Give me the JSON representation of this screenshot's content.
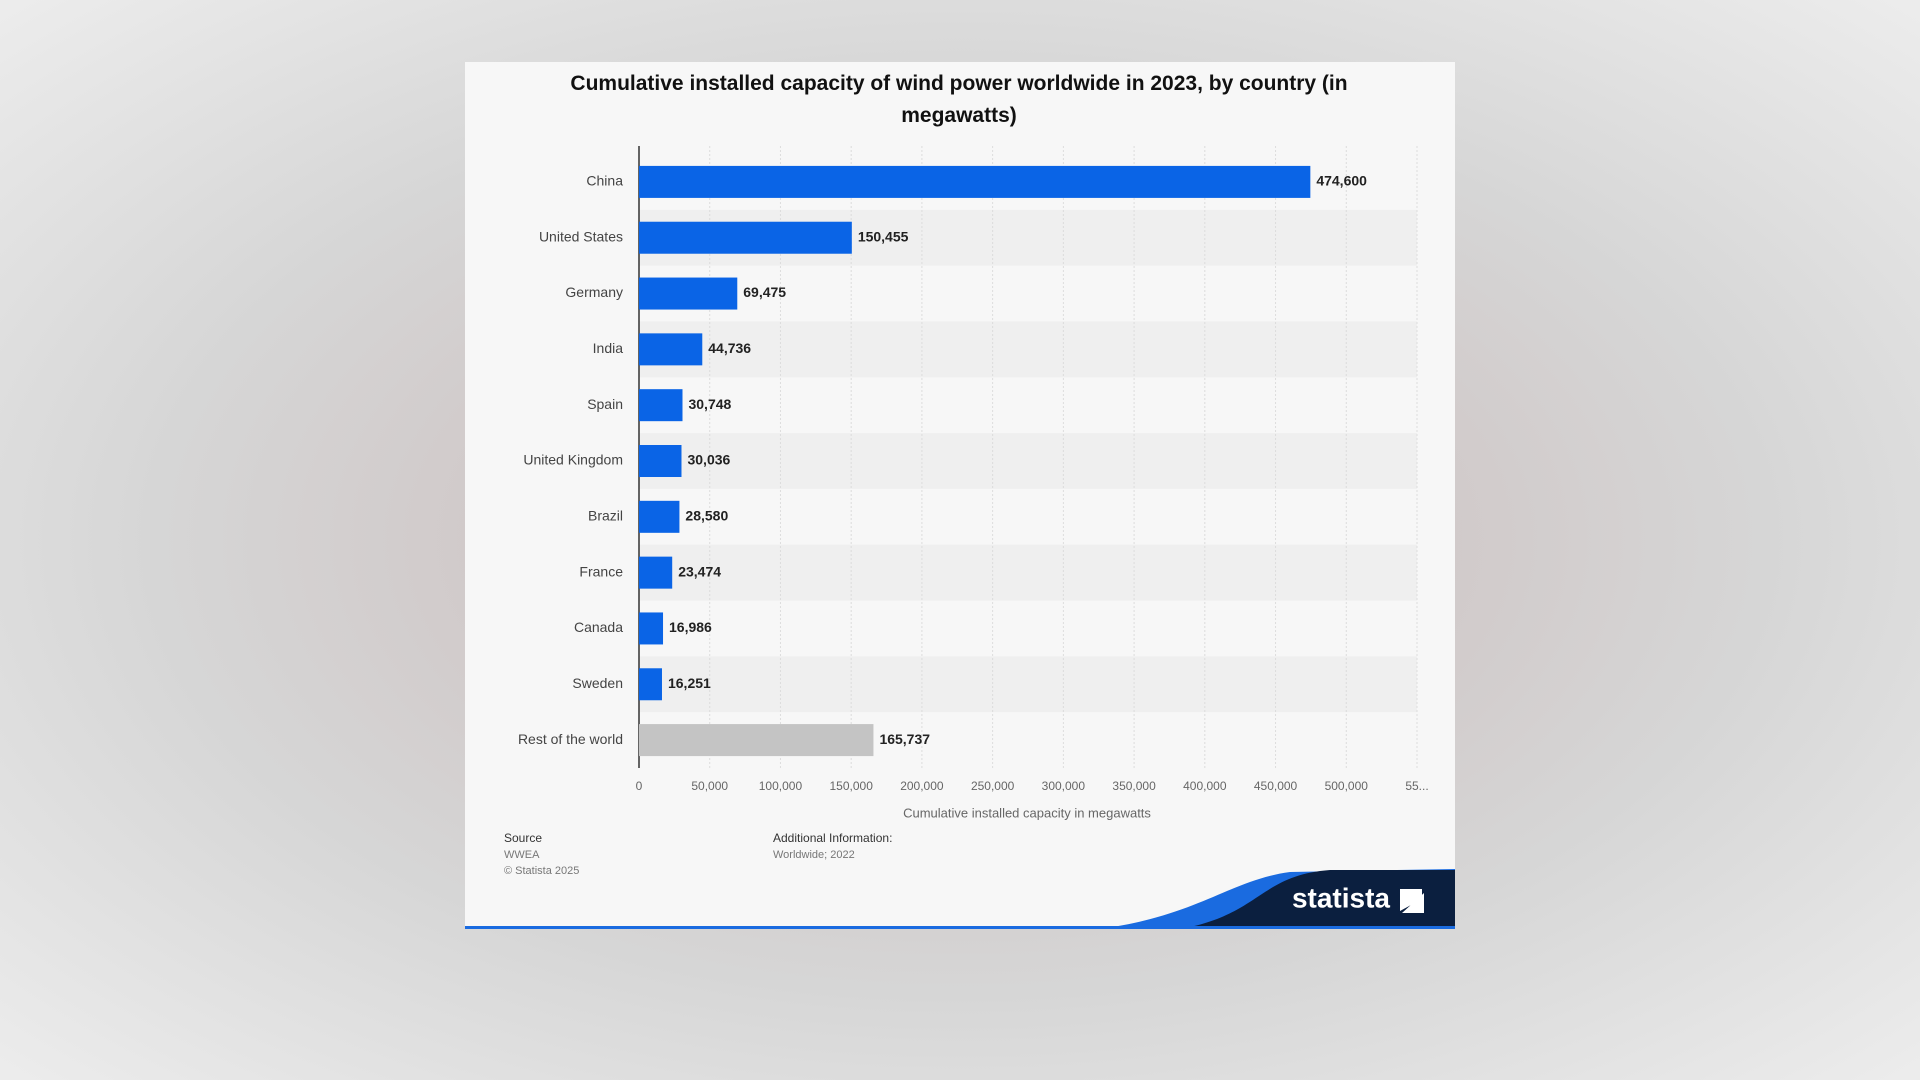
{
  "chart_data": {
    "type": "hbar",
    "title": "Cumulative installed capacity of wind power worldwide in 2023, by country (in megawatts)",
    "categories": [
      "China",
      "United States",
      "Germany",
      "India",
      "Spain",
      "United Kingdom",
      "Brazil",
      "France",
      "Canada",
      "Sweden",
      "Rest of the world"
    ],
    "values": [
      474600,
      150455,
      69475,
      44736,
      30748,
      30036,
      28580,
      23474,
      16986,
      16251,
      165737
    ],
    "value_labels": [
      "474,600",
      "150,455",
      "69,475",
      "44,736",
      "30,748",
      "30,036",
      "28,580",
      "23,474",
      "16,986",
      "16,251",
      "165,737"
    ],
    "colors": [
      "#0a64e6",
      "#0a64e6",
      "#0a64e6",
      "#0a64e6",
      "#0a64e6",
      "#0a64e6",
      "#0a64e6",
      "#0a64e6",
      "#0a64e6",
      "#0a64e6",
      "#c4c4c4"
    ],
    "xlabel": "Cumulative installed capacity in megawatts",
    "xlim": [
      0,
      550000
    ],
    "xticks": [
      0,
      {
        "value": 50000,
        "label": "50,000"
      },
      {
        "value": 100000,
        "label": "100,000"
      },
      {
        "value": 150000,
        "label": "150,000"
      },
      {
        "value": 200000,
        "label": "200,000"
      },
      {
        "value": 250000,
        "label": "250,000"
      },
      {
        "value": 300000,
        "label": "300,000"
      },
      {
        "value": 350000,
        "label": "350,000"
      },
      {
        "value": 400000,
        "label": "400,000"
      },
      {
        "value": 450000,
        "label": "450,000"
      },
      {
        "value": 500000,
        "label": "500,000"
      },
      {
        "value": 550000,
        "label": "55..."
      }
    ],
    "grid": true
  },
  "footer": {
    "source_label": "Source",
    "source": "WWEA",
    "copyright": "© Statista 2025",
    "additional_info_label": "Additional Information:",
    "additional_info": "Worldwide; 2022",
    "brand": "statista"
  }
}
